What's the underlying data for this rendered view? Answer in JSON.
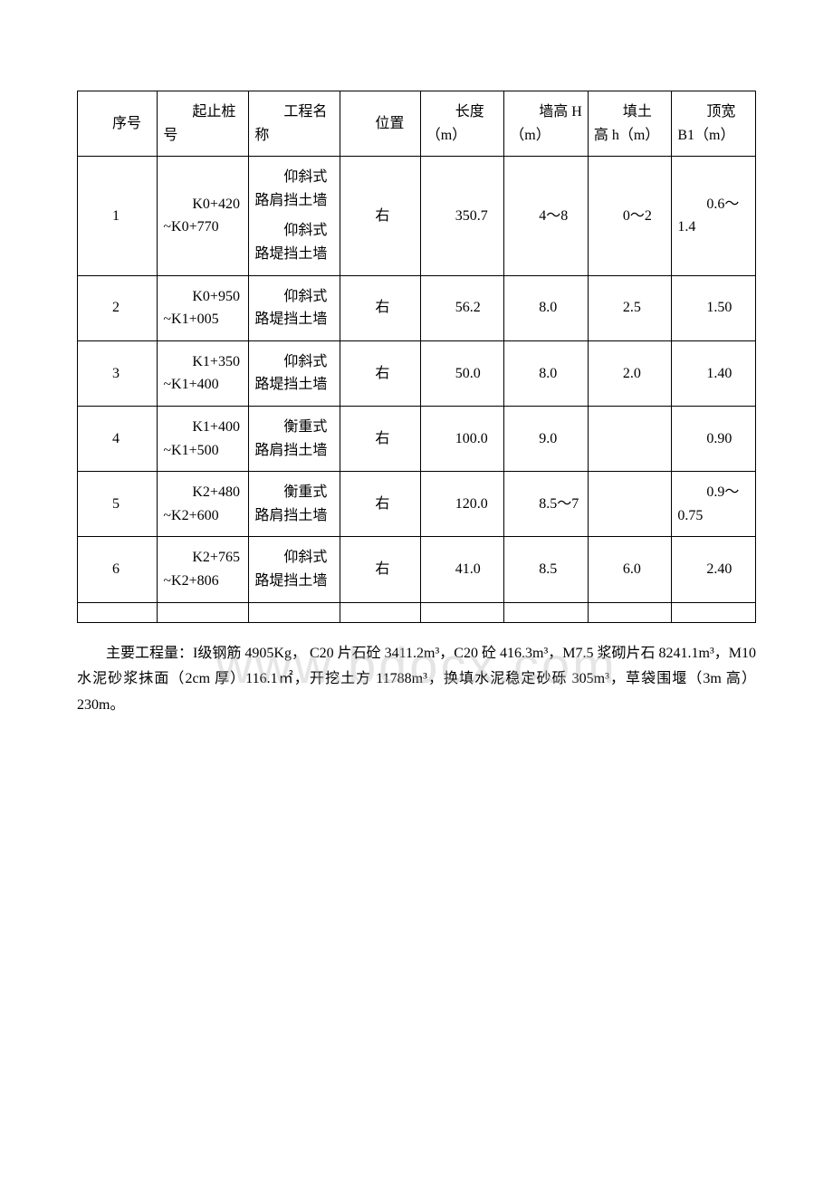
{
  "watermark": "www.bdocx.com",
  "table": {
    "headers": {
      "seq": "序号",
      "stake": "起止桩号",
      "proj": "工程名称",
      "pos": "位置",
      "len": "长度（m）",
      "wall": "墙高 H（m）",
      "fill": "填土高 h（m）",
      "top": "顶宽 B1（m）"
    },
    "rows": [
      {
        "seq": "1",
        "stake": "K0+420~K0+770",
        "proj_a": "仰斜式路肩挡土墙",
        "proj_b": "仰斜式路堤挡土墙",
        "pos": "右",
        "len": "350.7",
        "wall": "4～8",
        "fill": "0～2",
        "top": "0.6～1.4"
      },
      {
        "seq": "2",
        "stake": "K0+950~K1+005",
        "proj": "仰斜式路堤挡土墙",
        "pos": "右",
        "len": "56.2",
        "wall": "8.0",
        "fill": "2.5",
        "top": "1.50"
      },
      {
        "seq": "3",
        "stake": "K1+350~K1+400",
        "proj": "仰斜式路堤挡土墙",
        "pos": "右",
        "len": "50.0",
        "wall": "8.0",
        "fill": "2.0",
        "top": "1.40"
      },
      {
        "seq": "4",
        "stake": "K1+400~K1+500",
        "proj": "衡重式路肩挡土墙",
        "pos": "右",
        "len": "100.0",
        "wall": "9.0",
        "fill": "",
        "top": "0.90"
      },
      {
        "seq": "5",
        "stake": "K2+480~K2+600",
        "proj": "衡重式路肩挡土墙",
        "pos": "右",
        "len": "120.0",
        "wall": "8.5～7",
        "fill": "",
        "top": "0.9～0.75"
      },
      {
        "seq": "6",
        "stake": "K2+765~K2+806",
        "proj": "仰斜式路堤挡土墙",
        "pos": "右",
        "len": "41.0",
        "wall": "8.5",
        "fill": "6.0",
        "top": "2.40"
      }
    ]
  },
  "paragraph": "主要工程量：I级钢筋 4905Kg， C20 片石砼 3411.2m³，C20 砼 416.3m³，M7.5 浆砌片石 8241.1m³，M10 水泥砂浆抹面（2cm 厚）116.1㎡，开挖土方 11788m³，换填水泥稳定砂砾 305m³，草袋围堰（3m 高）230m。"
}
